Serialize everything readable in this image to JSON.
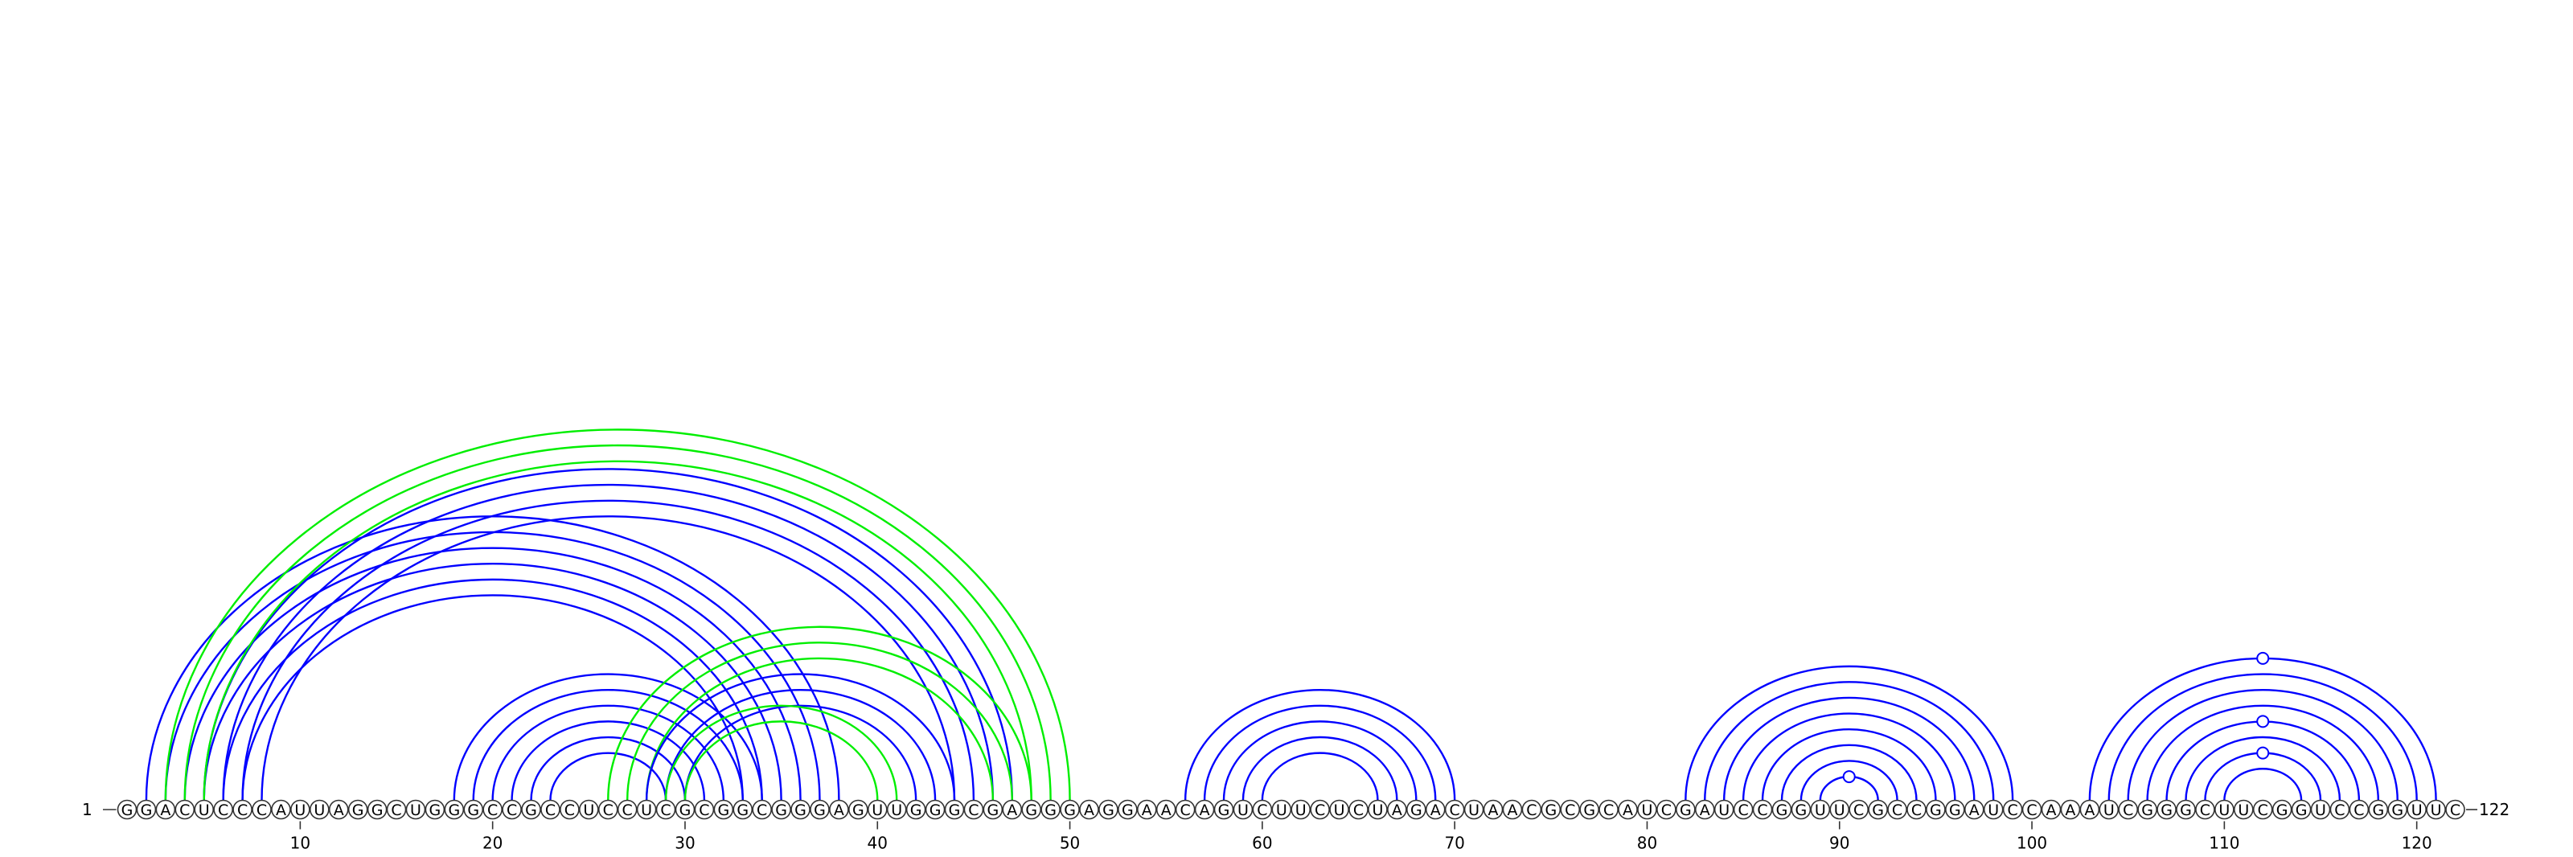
{
  "diagram": {
    "sequence": "GGACUCCCAUUAGGCUGGGCCGCCUCCUCGCGGCGGGAGUUGGGCGAGGGAGGAACAGUCUUCUCUAGACUAACGCGCAUCGAUCCGGUUCGCCGGAUCCAAAUCGGGCUUCGGUCCGGUUC",
    "start_label": "1",
    "end_label": "122",
    "ticks": [
      10,
      20,
      30,
      40,
      50,
      60,
      70,
      80,
      90,
      100,
      110,
      120
    ],
    "colors": {
      "helix": "#0000ff",
      "pseudoknot": "#00ee00"
    },
    "arcs": [
      {
        "i": 3,
        "j": 37,
        "color": "blue"
      },
      {
        "i": 4,
        "j": 36,
        "color": "blue"
      },
      {
        "i": 5,
        "j": 35,
        "color": "blue"
      },
      {
        "i": 6,
        "j": 34,
        "color": "blue"
      },
      {
        "i": 7,
        "j": 33,
        "color": "blue"
      },
      {
        "i": 2,
        "j": 38,
        "color": "blue"
      },
      {
        "i": 5,
        "j": 47,
        "color": "blue"
      },
      {
        "i": 6,
        "j": 46,
        "color": "blue"
      },
      {
        "i": 7,
        "j": 45,
        "color": "blue"
      },
      {
        "i": 8,
        "j": 44,
        "color": "blue"
      },
      {
        "i": 3,
        "j": 50,
        "color": "green"
      },
      {
        "i": 4,
        "j": 49,
        "color": "green"
      },
      {
        "i": 5,
        "j": 48,
        "color": "green"
      },
      {
        "i": 18,
        "j": 34,
        "color": "blue"
      },
      {
        "i": 19,
        "j": 33,
        "color": "blue"
      },
      {
        "i": 20,
        "j": 32,
        "color": "blue"
      },
      {
        "i": 21,
        "j": 31,
        "color": "blue"
      },
      {
        "i": 22,
        "j": 30,
        "color": "blue"
      },
      {
        "i": 23,
        "j": 29,
        "color": "blue"
      },
      {
        "i": 26,
        "j": 48,
        "color": "green"
      },
      {
        "i": 27,
        "j": 47,
        "color": "green"
      },
      {
        "i": 28,
        "j": 46,
        "color": "green"
      },
      {
        "i": 28,
        "j": 44,
        "color": "blue"
      },
      {
        "i": 29,
        "j": 43,
        "color": "blue"
      },
      {
        "i": 30,
        "j": 42,
        "color": "blue"
      },
      {
        "i": 29,
        "j": 41,
        "color": "green"
      },
      {
        "i": 30,
        "j": 40,
        "color": "green"
      },
      {
        "i": 56,
        "j": 70,
        "color": "blue"
      },
      {
        "i": 57,
        "j": 69,
        "color": "blue"
      },
      {
        "i": 58,
        "j": 68,
        "color": "blue"
      },
      {
        "i": 59,
        "j": 67,
        "color": "blue"
      },
      {
        "i": 60,
        "j": 66,
        "color": "blue"
      },
      {
        "i": 82,
        "j": 99,
        "color": "blue"
      },
      {
        "i": 83,
        "j": 98,
        "color": "blue"
      },
      {
        "i": 84,
        "j": 97,
        "color": "blue"
      },
      {
        "i": 85,
        "j": 96,
        "color": "blue"
      },
      {
        "i": 86,
        "j": 95,
        "color": "blue"
      },
      {
        "i": 87,
        "j": 94,
        "color": "blue"
      },
      {
        "i": 88,
        "j": 93,
        "color": "blue"
      },
      {
        "i": 89,
        "j": 92,
        "color": "blue"
      },
      {
        "i": 103,
        "j": 121,
        "color": "blue"
      },
      {
        "i": 104,
        "j": 120,
        "color": "blue"
      },
      {
        "i": 105,
        "j": 119,
        "color": "blue"
      },
      {
        "i": 106,
        "j": 118,
        "color": "blue"
      },
      {
        "i": 107,
        "j": 117,
        "color": "blue"
      },
      {
        "i": 108,
        "j": 116,
        "color": "blue"
      },
      {
        "i": 109,
        "j": 115,
        "color": "blue"
      },
      {
        "i": 110,
        "j": 114,
        "color": "blue"
      }
    ],
    "markers": [
      {
        "i": 89,
        "j": 92
      },
      {
        "i": 103,
        "j": 121
      },
      {
        "i": 107,
        "j": 117
      },
      {
        "i": 109,
        "j": 115
      }
    ]
  }
}
